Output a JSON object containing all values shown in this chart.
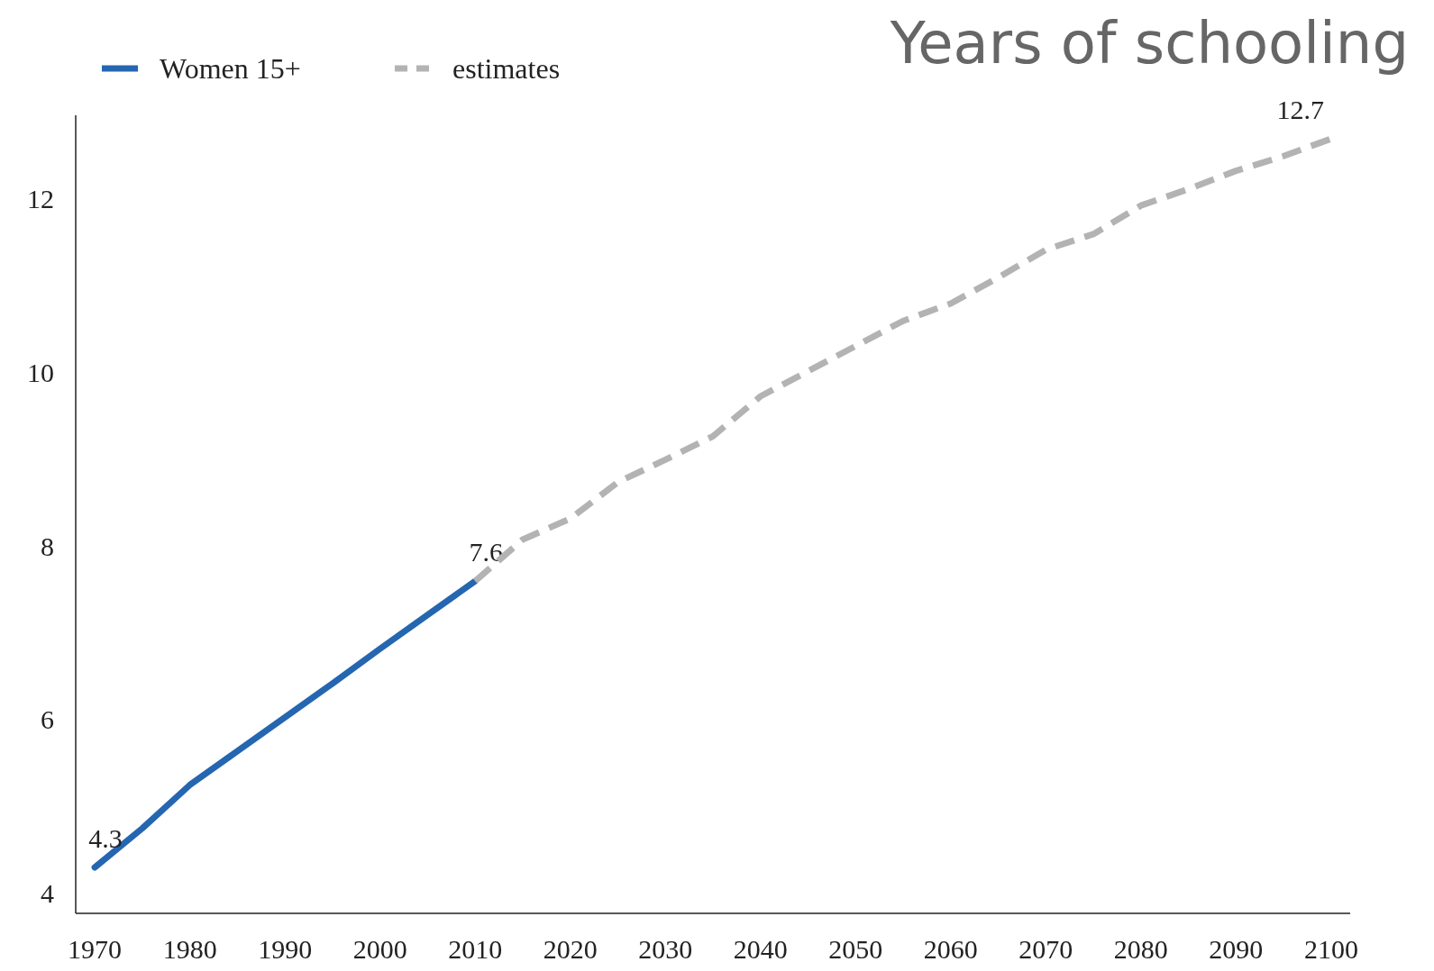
{
  "chart_data": {
    "type": "line",
    "title": "Years of schooling",
    "xlim": [
      1968,
      2102
    ],
    "ylim": [
      3.77,
      12.97
    ],
    "xticks": [
      1970,
      1980,
      1990,
      2000,
      2010,
      2020,
      2030,
      2040,
      2050,
      2060,
      2070,
      2080,
      2090,
      2100
    ],
    "yticks": [
      4,
      6,
      8,
      10,
      12
    ],
    "grid": false,
    "legend": "top left",
    "marker": "none",
    "series": [
      {
        "name": "Women 15+",
        "color": "#2566b0",
        "line_style": "solid",
        "x": [
          1970,
          1975,
          1980,
          1985,
          1990,
          1995,
          2000,
          2005,
          2010
        ],
        "values": [
          4.3,
          4.75,
          5.25,
          5.64,
          6.03,
          6.42,
          6.82,
          7.21,
          7.6
        ],
        "value_labels": [
          "4.3",
          null,
          null,
          null,
          null,
          null,
          null,
          null,
          "7.6"
        ]
      },
      {
        "name": "estimates",
        "color": "#b3b3b3",
        "line_style": "dashed",
        "x": [
          2010,
          2015,
          2020,
          2025,
          2030,
          2035,
          2040,
          2045,
          2050,
          2055,
          2060,
          2065,
          2070,
          2075,
          2080,
          2085,
          2090,
          2095,
          2100
        ],
        "values": [
          7.6,
          8.08,
          8.32,
          8.74,
          9.0,
          9.27,
          9.73,
          10.02,
          10.31,
          10.6,
          10.8,
          11.1,
          11.42,
          11.6,
          11.93,
          12.12,
          12.33,
          12.5,
          12.7
        ],
        "value_labels": [
          null,
          null,
          null,
          null,
          null,
          null,
          null,
          null,
          null,
          null,
          null,
          null,
          null,
          null,
          null,
          null,
          null,
          null,
          "12.7"
        ]
      }
    ]
  }
}
